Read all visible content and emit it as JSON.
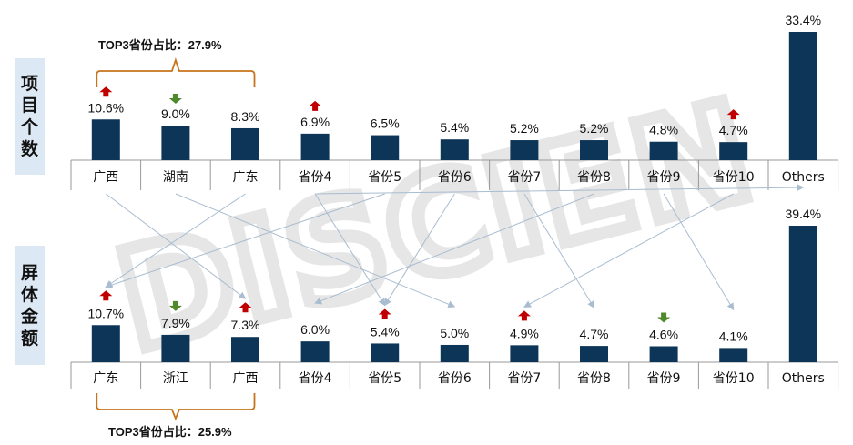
{
  "chart_data": [
    {
      "type": "bar",
      "section_label": "项目个数",
      "top3_annotation": "TOP3省份占比：27.9%",
      "categories": [
        "广西",
        "湖南",
        "广东",
        "省份4",
        "省份5",
        "省份6",
        "省份7",
        "省份8",
        "省份9",
        "省份10",
        "Others"
      ],
      "values": [
        10.6,
        9.0,
        8.3,
        6.9,
        6.5,
        5.4,
        5.2,
        5.2,
        4.8,
        4.7,
        33.4
      ],
      "value_labels": [
        "10.6%",
        "9.0%",
        "8.3%",
        "6.9%",
        "6.5%",
        "5.4%",
        "5.2%",
        "5.2%",
        "4.8%",
        "4.7%",
        "33.4%"
      ],
      "trend": [
        "up",
        "down",
        "",
        "up",
        "",
        "",
        "",
        "",
        "",
        "up",
        ""
      ],
      "bar_color": "#0d3557",
      "ylim": [
        0,
        33.4
      ]
    },
    {
      "type": "bar",
      "section_label": "屏体金额",
      "top3_annotation": "TOP3省份占比：25.9%",
      "categories": [
        "广东",
        "浙江",
        "广西",
        "省份4",
        "省份5",
        "省份6",
        "省份7",
        "省份8",
        "省份9",
        "省份10",
        "Others"
      ],
      "values": [
        10.7,
        7.9,
        7.3,
        6.0,
        5.4,
        5.0,
        4.9,
        4.7,
        4.6,
        4.1,
        39.4
      ],
      "value_labels": [
        "10.7%",
        "7.9%",
        "7.3%",
        "6.0%",
        "5.4%",
        "5.0%",
        "4.9%",
        "4.7%",
        "4.6%",
        "4.1%",
        "39.4%"
      ],
      "trend": [
        "up",
        "down",
        "up",
        "",
        "up",
        "",
        "up",
        "",
        "down",
        "",
        ""
      ],
      "bar_color": "#0d3557",
      "ylim": [
        0,
        39.4
      ]
    }
  ],
  "rank_links": [
    [
      0,
      2
    ],
    [
      1,
      5
    ],
    [
      2,
      0
    ],
    [
      3,
      4
    ],
    [
      4,
      0
    ],
    [
      5,
      4
    ],
    [
      6,
      7
    ],
    [
      7,
      3
    ],
    [
      8,
      9
    ],
    [
      9,
      6
    ],
    [
      3,
      10
    ]
  ],
  "colors": {
    "up": "#c00000",
    "down": "#4e8a2b",
    "link": "#a9bcd0",
    "axis": "#999999",
    "watermark": "#e6e6e6"
  },
  "watermark": "DISCIEN"
}
